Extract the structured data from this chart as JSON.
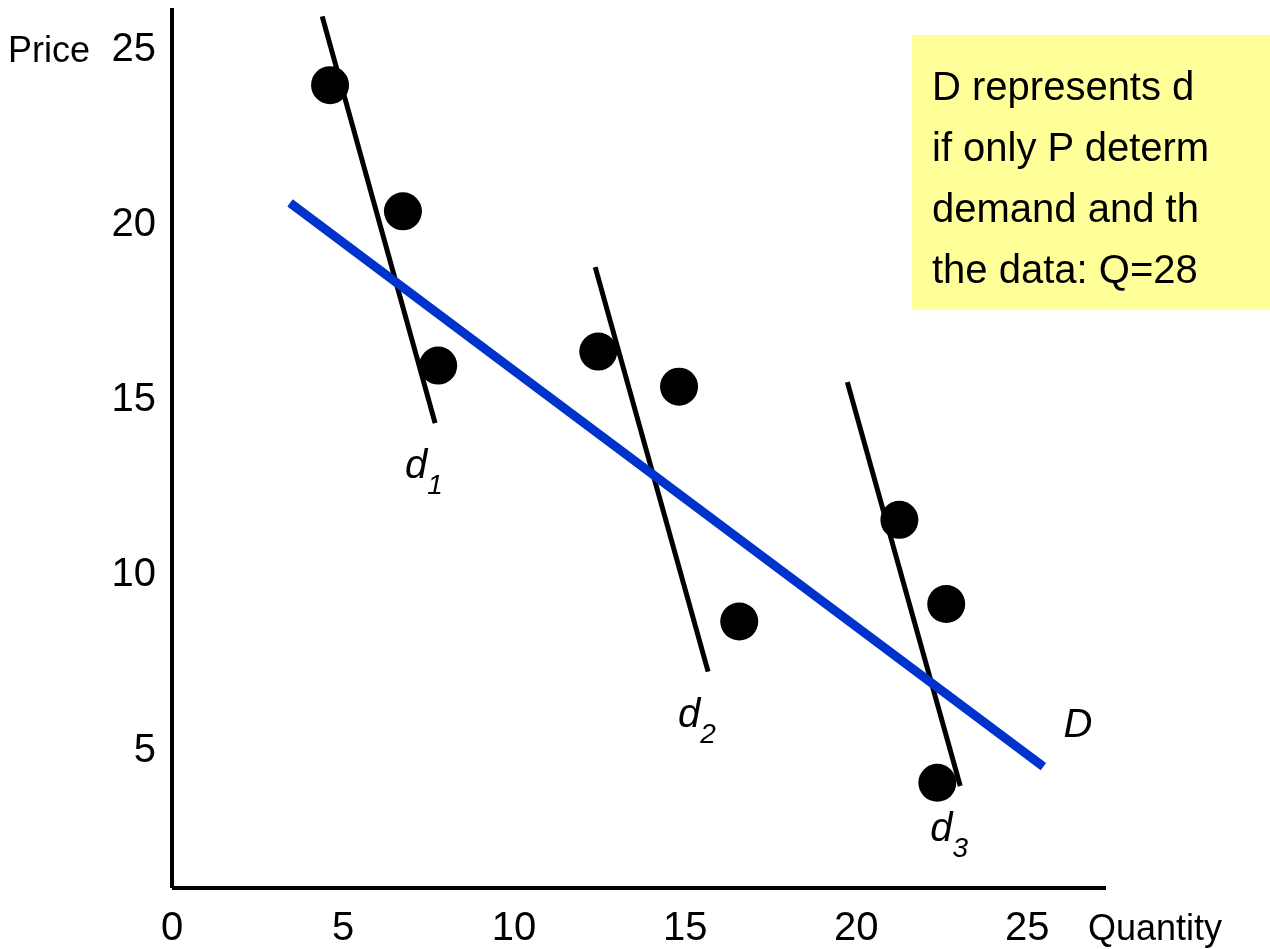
{
  "chart_data": {
    "type": "scatter",
    "xlabel": "Quantity",
    "ylabel": "Price",
    "xlim": [
      0,
      27.3
    ],
    "ylim": [
      1,
      26.1
    ],
    "xticks": [
      0,
      5,
      10,
      15,
      20,
      25
    ],
    "yticks": [
      5,
      10,
      15,
      20,
      25
    ],
    "grid": false,
    "series": [
      {
        "marker": "circle",
        "color": "#000000",
        "x": [
          4.62,
          6.75,
          7.78,
          12.46,
          14.82,
          16.58,
          21.26,
          22.63,
          22.37
        ],
        "values": [
          23.9,
          20.3,
          15.9,
          16.3,
          15.3,
          8.6,
          11.5,
          9.1,
          4.0
        ]
      },
      {
        "type": "line",
        "name": "d$_{1}$",
        "color": "#000000",
        "x": [
          4.39,
          7.69
        ],
        "values": [
          25.86,
          14.26
        ]
      },
      {
        "type": "line",
        "name": "d$_{2}$",
        "color": "#000000",
        "x": [
          12.37,
          15.67
        ],
        "values": [
          18.71,
          7.17
        ]
      },
      {
        "type": "line",
        "name": "d$_{3}$",
        "color": "#000000",
        "x": [
          19.74,
          23.04
        ],
        "values": [
          15.43,
          3.91
        ]
      },
      {
        "type": "line",
        "name": "D",
        "color": "#0033cc",
        "x": [
          3.45,
          25.47
        ],
        "values": [
          20.54,
          4.46
        ]
      }
    ],
    "annotations": [
      "D represents d\nif only P determ\ndemand and th\nthe data: Q=28"
    ]
  }
}
